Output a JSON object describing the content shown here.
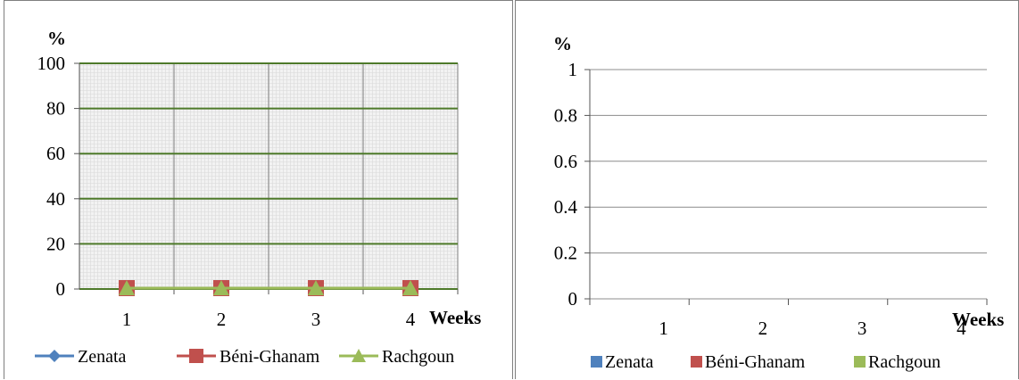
{
  "colors": {
    "zenata": "#4f81bd",
    "beni_ghanam": "#c0504d",
    "rachgoun": "#9bbb59",
    "left_grid": "#4e7a2a",
    "right_grid": "#8c8c8c",
    "plot_bg": "#f2f2f2"
  },
  "chart_data": [
    {
      "type": "line",
      "ylabel": "%",
      "xlabel": "Weeks",
      "categories": [
        "1",
        "2",
        "3",
        "4"
      ],
      "ylim": [
        0,
        100
      ],
      "yticks": [
        "0",
        "20",
        "40",
        "60",
        "80",
        "100"
      ],
      "grid": true,
      "legend_position": "bottom",
      "series": [
        {
          "name": "Zenata",
          "marker": "diamond",
          "values": [
            0,
            0,
            0,
            0
          ]
        },
        {
          "name": "Béni-Ghanam",
          "marker": "square",
          "values": [
            0,
            0,
            0,
            0
          ]
        },
        {
          "name": "Rachgoun",
          "marker": "triangle",
          "values": [
            0,
            0,
            0,
            0
          ]
        }
      ]
    },
    {
      "type": "bar",
      "ylabel": "%",
      "xlabel": "Weeks",
      "categories": [
        "1",
        "2",
        "3",
        "4"
      ],
      "ylim": [
        0,
        1
      ],
      "yticks": [
        "0",
        "0.2",
        "0.4",
        "0.6",
        "0.8",
        "1"
      ],
      "grid": true,
      "legend_position": "bottom",
      "series": [
        {
          "name": "Zenata",
          "values": [
            0,
            0,
            0,
            0
          ]
        },
        {
          "name": "Béni-Ghanam",
          "values": [
            0,
            0,
            0,
            0
          ]
        },
        {
          "name": "Rachgoun",
          "values": [
            0,
            0,
            0,
            0
          ]
        }
      ]
    }
  ]
}
